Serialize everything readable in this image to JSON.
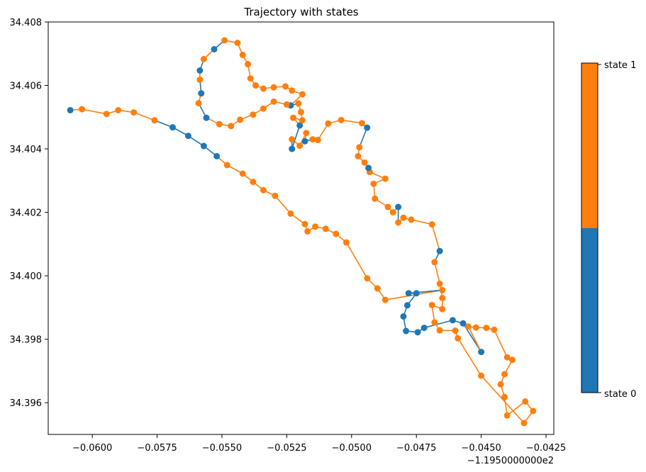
{
  "chart_data": {
    "type": "scatter",
    "title": "Trajectory with states",
    "xlabel": "",
    "ylabel": "",
    "x_offset_label": "−1.1950000000e2",
    "xlim": [
      -0.0617,
      -0.0422
    ],
    "ylim": [
      34.395,
      34.408
    ],
    "xticks": [
      -0.06,
      -0.0575,
      -0.055,
      -0.0525,
      -0.05,
      -0.0475,
      -0.045,
      -0.0425
    ],
    "xtick_labels": [
      "−0.0600",
      "−0.0575",
      "−0.0550",
      "−0.0525",
      "−0.0500",
      "−0.0475",
      "−0.0450",
      "−0.0425"
    ],
    "yticks": [
      34.396,
      34.398,
      34.4,
      34.402,
      34.404,
      34.406,
      34.408
    ],
    "ytick_labels": [
      "34.396",
      "34.398",
      "34.400",
      "34.402",
      "34.404",
      "34.406",
      "34.408"
    ],
    "grid": false,
    "colorbar": {
      "labels": [
        "state 0",
        "state 1"
      ],
      "colors": [
        "#1f77b4",
        "#ff7f0e"
      ],
      "split": 0.5
    },
    "state_colors": [
      "#1f77b4",
      "#ff7f0e"
    ],
    "points": [
      [
        -0.06085,
        34.40522,
        0
      ],
      [
        -0.0604,
        34.40525,
        1
      ],
      [
        -0.05945,
        34.4051,
        1
      ],
      [
        -0.059,
        34.40522,
        1
      ],
      [
        -0.0584,
        34.40515,
        1
      ],
      [
        -0.0576,
        34.4049,
        1
      ],
      [
        -0.0569,
        34.40468,
        0
      ],
      [
        -0.0563,
        34.40441,
        0
      ],
      [
        -0.0557,
        34.40409,
        0
      ],
      [
        -0.0552,
        34.40377,
        0
      ],
      [
        -0.0548,
        34.40349,
        1
      ],
      [
        -0.0542,
        34.40322,
        1
      ],
      [
        -0.0538,
        34.40296,
        1
      ],
      [
        -0.0534,
        34.4027,
        1
      ],
      [
        -0.05295,
        34.40252,
        1
      ],
      [
        -0.05235,
        34.40196,
        1
      ],
      [
        -0.0518,
        34.40163,
        1
      ],
      [
        -0.0517,
        34.4014,
        1
      ],
      [
        -0.0514,
        34.40155,
        1
      ],
      [
        -0.051,
        34.40148,
        1
      ],
      [
        -0.0506,
        34.40132,
        1
      ],
      [
        -0.0502,
        34.40105,
        1
      ],
      [
        -0.0494,
        34.39992,
        1
      ],
      [
        -0.049,
        34.3996,
        1
      ],
      [
        -0.0487,
        34.39924,
        1
      ],
      [
        -0.0465,
        34.39955,
        1
      ],
      [
        -0.0478,
        34.39945,
        0
      ],
      [
        -0.0475,
        34.39945,
        0
      ],
      [
        -0.04785,
        34.39907,
        0
      ],
      [
        -0.048,
        34.39872,
        0
      ],
      [
        -0.0479,
        34.39826,
        0
      ],
      [
        -0.04745,
        34.39822,
        0
      ],
      [
        -0.0472,
        34.39836,
        0
      ],
      [
        -0.0461,
        34.3986,
        0
      ],
      [
        -0.0457,
        34.3985,
        0
      ],
      [
        -0.045,
        34.3976,
        0
      ],
      [
        -0.0455,
        34.3984,
        1
      ],
      [
        -0.0452,
        34.39837,
        1
      ],
      [
        -0.0448,
        34.39836,
        1
      ],
      [
        -0.0445,
        34.3983,
        1
      ],
      [
        -0.044,
        34.39743,
        1
      ],
      [
        -0.0438,
        34.39735,
        1
      ],
      [
        -0.0441,
        34.3969,
        1
      ],
      [
        -0.04425,
        34.39658,
        1
      ],
      [
        -0.0441,
        34.39618,
        1
      ],
      [
        -0.044,
        34.3956,
        1
      ],
      [
        -0.0433,
        34.39604,
        1
      ],
      [
        -0.043,
        34.39574,
        1
      ],
      [
        -0.04335,
        34.39536,
        1
      ],
      [
        -0.045,
        34.39685,
        1
      ],
      [
        -0.0459,
        34.39803,
        1
      ],
      [
        -0.046,
        34.39827,
        1
      ],
      [
        -0.0466,
        34.39828,
        1
      ],
      [
        -0.0468,
        34.39853,
        1
      ],
      [
        -0.0469,
        34.39908,
        1
      ],
      [
        -0.0465,
        34.39895,
        1
      ],
      [
        -0.0465,
        34.3993,
        1
      ],
      [
        -0.0466,
        34.39975,
        1
      ],
      [
        -0.0468,
        34.40043,
        1
      ],
      [
        -0.0466,
        34.40078,
        0
      ],
      [
        -0.0469,
        34.40162,
        1
      ],
      [
        -0.0477,
        34.40177,
        1
      ],
      [
        -0.048,
        34.40183,
        1
      ],
      [
        -0.0482,
        34.40168,
        1
      ],
      [
        -0.0482,
        34.40217,
        0
      ],
      [
        -0.0484,
        34.402,
        1
      ],
      [
        -0.0486,
        34.40217,
        1
      ],
      [
        -0.0491,
        34.40243,
        1
      ],
      [
        -0.04915,
        34.4029,
        1
      ],
      [
        -0.0487,
        34.40306,
        1
      ],
      [
        -0.0493,
        34.40327,
        1
      ],
      [
        -0.04935,
        34.4034,
        0
      ],
      [
        -0.0495,
        34.40357,
        1
      ],
      [
        -0.04975,
        34.40377,
        1
      ],
      [
        -0.0497,
        34.40405,
        1
      ],
      [
        -0.0494,
        34.40467,
        0
      ],
      [
        -0.0496,
        34.40481,
        1
      ],
      [
        -0.0504,
        34.40491,
        1
      ],
      [
        -0.0509,
        34.4048,
        1
      ],
      [
        -0.0513,
        34.40428,
        1
      ],
      [
        -0.0515,
        34.4043,
        1
      ],
      [
        -0.0518,
        34.40424,
        0
      ],
      [
        -0.05175,
        34.4045,
        1
      ],
      [
        -0.052,
        34.4041,
        1
      ],
      [
        -0.0523,
        34.4043,
        1
      ],
      [
        -0.0523,
        34.404,
        0
      ],
      [
        -0.052,
        34.40474,
        0
      ],
      [
        -0.05225,
        34.40498,
        1
      ],
      [
        -0.0519,
        34.4049,
        1
      ],
      [
        -0.05195,
        34.40516,
        1
      ],
      [
        -0.05205,
        34.40543,
        1
      ],
      [
        -0.05235,
        34.40537,
        0
      ],
      [
        -0.0519,
        34.40572,
        1
      ],
      [
        -0.0523,
        34.40584,
        1
      ],
      [
        -0.05255,
        34.40597,
        1
      ],
      [
        -0.053,
        34.40594,
        1
      ],
      [
        -0.0534,
        34.4059,
        1
      ],
      [
        -0.0537,
        34.406,
        1
      ],
      [
        -0.0539,
        34.40622,
        1
      ],
      [
        -0.054,
        34.40667,
        1
      ],
      [
        -0.0542,
        34.40696,
        1
      ],
      [
        -0.0544,
        34.40734,
        1
      ],
      [
        -0.0549,
        34.40742,
        1
      ],
      [
        -0.0553,
        34.40714,
        0
      ],
      [
        -0.0557,
        34.40683,
        1
      ],
      [
        -0.05585,
        34.40647,
        0
      ],
      [
        -0.05585,
        34.40618,
        1
      ],
      [
        -0.0558,
        34.40575,
        0
      ],
      [
        -0.0559,
        34.40544,
        1
      ],
      [
        -0.0556,
        34.40498,
        0
      ],
      [
        -0.0551,
        34.40478,
        1
      ],
      [
        -0.05465,
        34.40472,
        1
      ],
      [
        -0.0543,
        34.40492,
        1
      ],
      [
        -0.0538,
        34.40508,
        1
      ],
      [
        -0.0534,
        34.40527,
        1
      ],
      [
        -0.053,
        34.40549,
        1
      ],
      [
        -0.0525,
        34.4054,
        1
      ]
    ]
  }
}
